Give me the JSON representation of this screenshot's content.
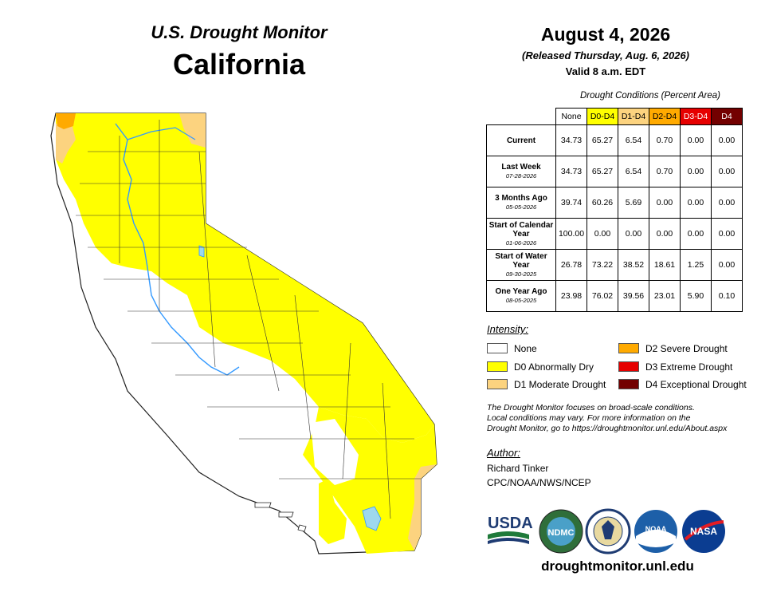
{
  "header": {
    "title": "U.S. Drought Monitor",
    "state": "California",
    "date": "August 4, 2026",
    "released": "(Released Thursday, Aug. 6, 2026)",
    "valid": "Valid 8 a.m. EDT"
  },
  "table": {
    "caption": "Drought Conditions (Percent Area)",
    "columns": [
      {
        "label": "None",
        "color": "#ffffff",
        "text_color": "#000000"
      },
      {
        "label": "D0-D4",
        "color": "#ffff00",
        "text_color": "#000000"
      },
      {
        "label": "D1-D4",
        "color": "#fcd37f",
        "text_color": "#000000"
      },
      {
        "label": "D2-D4",
        "color": "#ffaa00",
        "text_color": "#000000"
      },
      {
        "label": "D3-D4",
        "color": "#e60000",
        "text_color": "#ffffff"
      },
      {
        "label": "D4",
        "color": "#730000",
        "text_color": "#ffffff"
      }
    ],
    "rows": [
      {
        "label": "Current",
        "sub": "",
        "values": [
          "34.73",
          "65.27",
          "6.54",
          "0.70",
          "0.00",
          "0.00"
        ]
      },
      {
        "label": "Last Week",
        "sub": "07-28-2026",
        "values": [
          "34.73",
          "65.27",
          "6.54",
          "0.70",
          "0.00",
          "0.00"
        ]
      },
      {
        "label": "3 Months Ago",
        "sub": "05-05-2026",
        "values": [
          "39.74",
          "60.26",
          "5.69",
          "0.00",
          "0.00",
          "0.00"
        ]
      },
      {
        "label": "Start of Calendar Year",
        "sub": "01-06-2026",
        "values": [
          "100.00",
          "0.00",
          "0.00",
          "0.00",
          "0.00",
          "0.00"
        ]
      },
      {
        "label": "Start of Water Year",
        "sub": "09-30-2025",
        "values": [
          "26.78",
          "73.22",
          "38.52",
          "18.61",
          "1.25",
          "0.00"
        ]
      },
      {
        "label": "One Year Ago",
        "sub": "08-05-2025",
        "values": [
          "23.98",
          "76.02",
          "39.56",
          "23.01",
          "5.90",
          "0.10"
        ]
      }
    ]
  },
  "legend": {
    "header": "Intensity:",
    "items": [
      {
        "label": "None",
        "color": "#ffffff"
      },
      {
        "label": "D0 Abnormally Dry",
        "color": "#ffff00"
      },
      {
        "label": "D1 Moderate Drought",
        "color": "#fcd37f"
      },
      {
        "label": "D2 Severe Drought",
        "color": "#ffaa00"
      },
      {
        "label": "D3 Extreme Drought",
        "color": "#e60000"
      },
      {
        "label": "D4 Exceptional Drought",
        "color": "#730000"
      }
    ]
  },
  "note": {
    "line1": "The Drought Monitor focuses on broad-scale conditions.",
    "line2": "Local conditions may vary. For more information on the",
    "line3": "Drought Monitor, go to https://droughtmonitor.unl.edu/About.aspx"
  },
  "author": {
    "header": "Author:",
    "name": "Richard Tinker",
    "org": "CPC/NOAA/NWS/NCEP"
  },
  "logos": {
    "usda": "USDA",
    "ndmc": "NDMC",
    "noaa": "NOAA",
    "nasa": "NASA"
  },
  "footer": {
    "url": "droughtmonitor.unl.edu"
  },
  "map": {
    "colors": {
      "none": "#ffffff",
      "d0": "#ffff00",
      "d1": "#fcd37f",
      "d2": "#ffaa00",
      "border": "#333333",
      "river": "#3399ff"
    }
  }
}
